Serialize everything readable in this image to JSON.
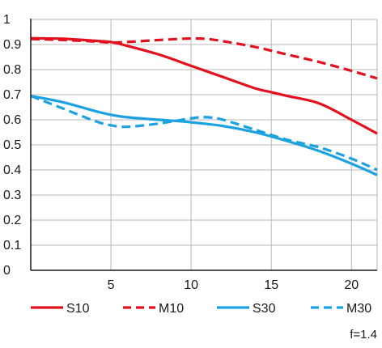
{
  "chart_data": {
    "type": "line",
    "title": "",
    "xlabel": "",
    "ylabel": "",
    "xlim": [
      0,
      21.6
    ],
    "ylim": [
      0,
      1
    ],
    "x_ticks": [
      5,
      10,
      15,
      20
    ],
    "y_ticks": [
      0,
      0.1,
      0.2,
      0.3,
      0.4,
      0.5,
      0.6,
      0.7,
      0.8,
      0.9,
      1
    ],
    "y_tick_labels": [
      "0",
      "0.1",
      "0.2",
      "0.3",
      "0.4",
      "0.5",
      "0.6",
      "0.7",
      "0.8",
      "0.9",
      "1"
    ],
    "grid": true,
    "legend_position": "bottom",
    "annotation": "f=1.4",
    "series": [
      {
        "name": "S10",
        "color": "#e3101d",
        "dash": "solid",
        "x": [
          0,
          2,
          4,
          5,
          6,
          8,
          10,
          12,
          14,
          15,
          16,
          18,
          20,
          21.6
        ],
        "values": [
          0.925,
          0.923,
          0.915,
          0.91,
          0.895,
          0.86,
          0.815,
          0.77,
          0.725,
          0.71,
          0.695,
          0.665,
          0.6,
          0.545
        ]
      },
      {
        "name": "M10",
        "color": "#e3101d",
        "dash": "dashed",
        "x": [
          0,
          2,
          4,
          5,
          6,
          8,
          10,
          11,
          12,
          14,
          16,
          18,
          20,
          21.6
        ],
        "values": [
          0.922,
          0.918,
          0.912,
          0.908,
          0.91,
          0.918,
          0.924,
          0.922,
          0.913,
          0.89,
          0.86,
          0.83,
          0.795,
          0.765
        ]
      },
      {
        "name": "S30",
        "color": "#1ca2e1",
        "dash": "solid",
        "x": [
          0,
          2,
          4,
          5,
          6,
          8,
          10,
          12,
          14,
          16,
          18,
          20,
          21.6
        ],
        "values": [
          0.695,
          0.67,
          0.635,
          0.62,
          0.61,
          0.6,
          0.59,
          0.575,
          0.55,
          0.515,
          0.475,
          0.425,
          0.38
        ]
      },
      {
        "name": "M30",
        "color": "#1ca2e1",
        "dash": "dashed",
        "x": [
          0,
          2,
          4,
          5,
          6,
          8,
          10,
          11,
          12,
          14,
          16,
          18,
          20,
          21.6
        ],
        "values": [
          0.695,
          0.645,
          0.595,
          0.578,
          0.572,
          0.585,
          0.606,
          0.61,
          0.6,
          0.56,
          0.52,
          0.49,
          0.445,
          0.4
        ]
      }
    ]
  }
}
